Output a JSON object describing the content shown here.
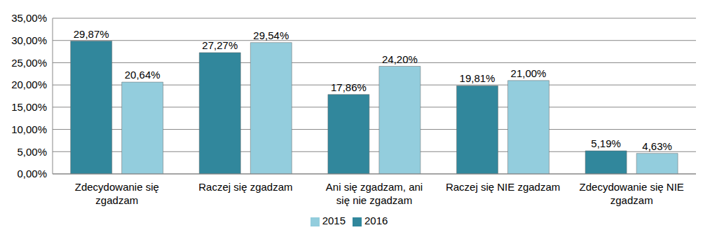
{
  "chart_data": {
    "type": "bar",
    "categories": [
      "Zdecydowanie się zgadzam",
      "Raczej się zgadzam",
      "Ani się zgadzam, ani się nie zgadzam",
      "Raczej się NIE zgadzam",
      "Zdecydowanie się NIE zgadzam"
    ],
    "series": [
      {
        "name": "2016",
        "color": "#31879c",
        "values": [
          29.87,
          27.27,
          17.86,
          19.81,
          5.19
        ],
        "value_labels": [
          "29,87%",
          "27,27%",
          "17,86%",
          "19,81%",
          "5,19%"
        ]
      },
      {
        "name": "2015",
        "color": "#93cddd",
        "values": [
          20.64,
          29.54,
          24.2,
          21.0,
          4.63
        ],
        "value_labels": [
          "20,64%",
          "29,54%",
          "24,20%",
          "21,00%",
          "4,63%"
        ]
      }
    ],
    "ylim": [
      0,
      35
    ],
    "yticks": [
      {
        "value": 0,
        "label": "0,00%"
      },
      {
        "value": 5,
        "label": "5,00%"
      },
      {
        "value": 10,
        "label": "10,00%"
      },
      {
        "value": 15,
        "label": "15,00%"
      },
      {
        "value": 20,
        "label": "20,00%"
      },
      {
        "value": 25,
        "label": "25,00%"
      },
      {
        "value": 30,
        "label": "30,00%"
      },
      {
        "value": 35,
        "label": "35,00%"
      }
    ],
    "grid": true,
    "legend": "bottom",
    "data_labels": true
  }
}
